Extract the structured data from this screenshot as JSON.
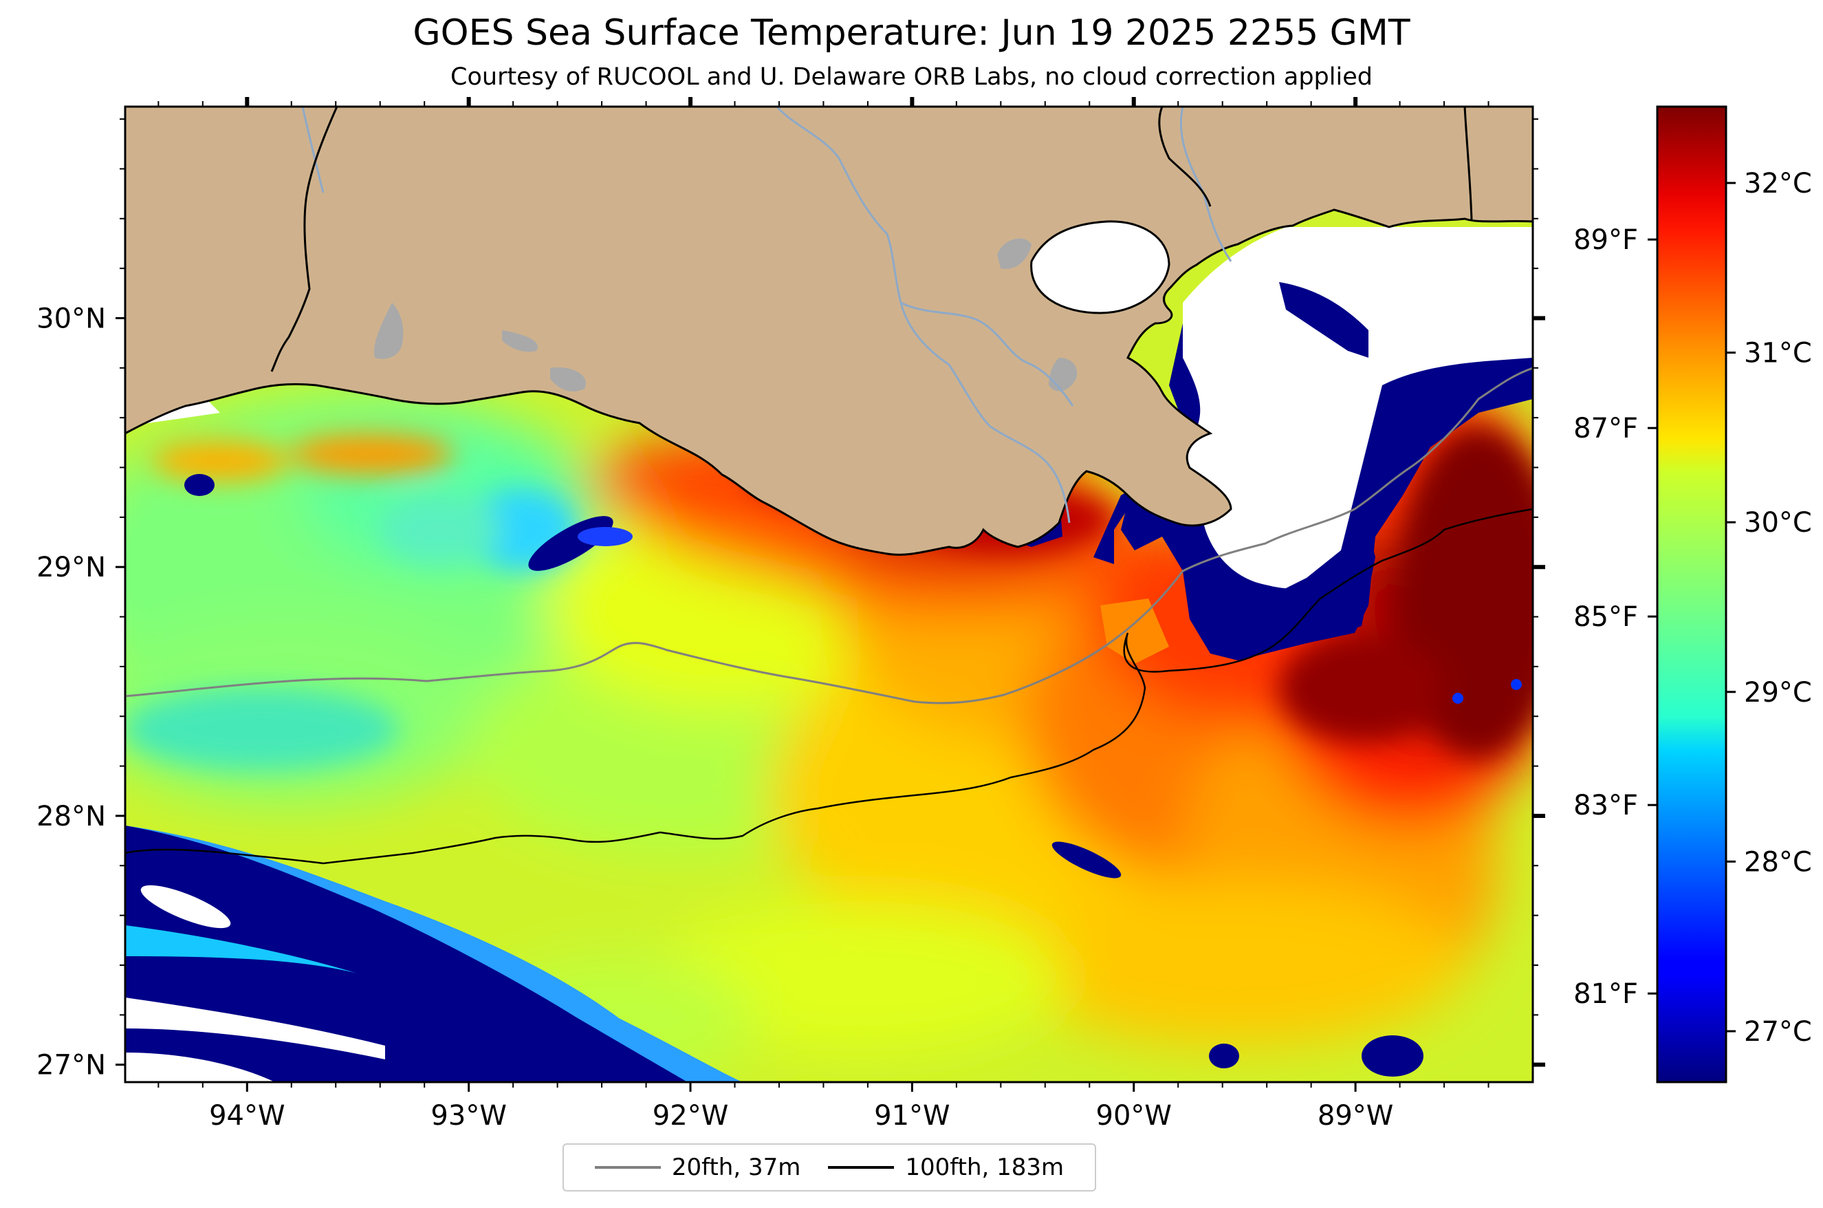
{
  "title": "GOES Sea Surface Temperature: Jun 19 2025 2255 GMT",
  "subtitle": "Courtesy of RUCOOL and U. Delaware ORB Labs, no cloud correction applied",
  "map": {
    "lon_range": [
      -94.55,
      -88.2
    ],
    "lat_range": [
      26.93,
      30.85
    ],
    "lon_ticks": [
      {
        "value": -94,
        "label": "94°W"
      },
      {
        "value": -93,
        "label": "93°W"
      },
      {
        "value": -92,
        "label": "92°W"
      },
      {
        "value": -91,
        "label": "91°W"
      },
      {
        "value": -90,
        "label": "90°W"
      },
      {
        "value": -89,
        "label": "89°W"
      }
    ],
    "lat_ticks": [
      {
        "value": 30,
        "label": "30°N"
      },
      {
        "value": 29,
        "label": "29°N"
      },
      {
        "value": 28,
        "label": "28°N"
      },
      {
        "value": 27,
        "label": "27°N"
      }
    ],
    "colors": {
      "land": "#cfb28d",
      "lake": "#a9a9a9",
      "river": "#8fa9c7",
      "no_data": "#ffffff"
    }
  },
  "colorbar": {
    "colormap": "jet",
    "range_c": [
      26.7,
      32.45
    ],
    "celsius_ticks": [
      {
        "value": 27,
        "label": "27°C"
      },
      {
        "value": 28,
        "label": "28°C"
      },
      {
        "value": 29,
        "label": "29°C"
      },
      {
        "value": 30,
        "label": "30°C"
      },
      {
        "value": 31,
        "label": "31°C"
      },
      {
        "value": 32,
        "label": "32°C"
      }
    ],
    "fahrenheit_ticks": [
      {
        "value": 81,
        "label": "81°F"
      },
      {
        "value": 83,
        "label": "83°F"
      },
      {
        "value": 85,
        "label": "85°F"
      },
      {
        "value": 87,
        "label": "87°F"
      },
      {
        "value": 89,
        "label": "89°F"
      }
    ]
  },
  "legend": [
    {
      "label": "20fth, 37m",
      "color": "#808080"
    },
    {
      "label": "100fth, 183m",
      "color": "#000000"
    }
  ]
}
